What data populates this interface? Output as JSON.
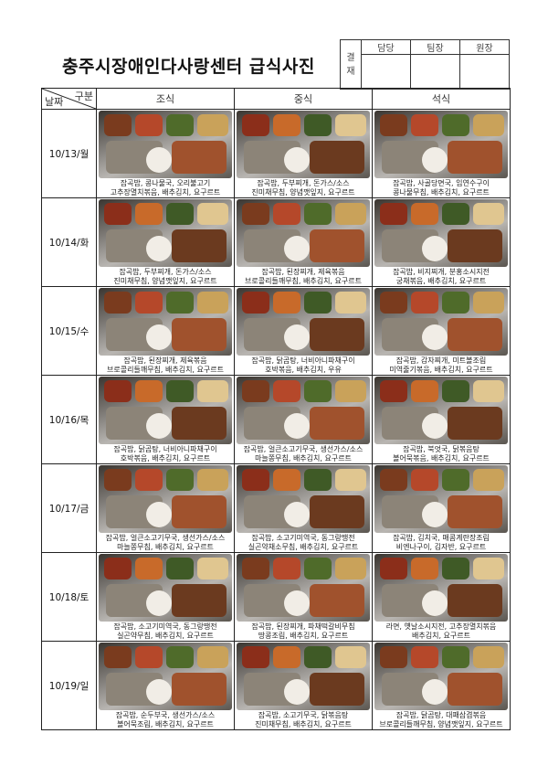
{
  "title": "충주시장애인다사랑센터 급식사진",
  "approval": {
    "label": "결\n재",
    "columns": [
      "담당",
      "팀장",
      "원장"
    ]
  },
  "table": {
    "corner_top": "구분",
    "corner_bottom": "날짜",
    "columns": [
      "조식",
      "중식",
      "석식"
    ],
    "rows": [
      {
        "date": "10/13/월",
        "meals": [
          [
            "잡곡밥, 콩나물국, 오리불고기",
            "고추장멸치볶음, 배추김치, 요구르트"
          ],
          [
            "잡곡밥, 두부찌개, 돈가스/소스",
            "진미채무침, 양념깻잎지, 요구르트"
          ],
          [
            "잡곡밥, 사골당면국, 임연수구이",
            "콩나물무침, 배추김치, 요구르트"
          ]
        ]
      },
      {
        "date": "10/14/화",
        "meals": [
          [
            "잡곡밥, 두부찌개, 돈가스/소스",
            "진미채무침, 양념깻잎지, 요구르트"
          ],
          [
            "잡곡밥, 된장찌개, 제육볶음",
            "브로콜리들깨무침, 배추김치, 요구르트"
          ],
          [
            "잡곡밥, 비지찌개, 분홍소시지전",
            "궁채볶음, 배추김치, 요구르트"
          ]
        ]
      },
      {
        "date": "10/15/수",
        "meals": [
          [
            "잡곡밥, 된장찌개, 제육볶음",
            "브로콜리들깨무침, 배추김치, 요구르트"
          ],
          [
            "잡곡밥, 닭곰탕, 너비아니파채구이",
            "호박볶음, 배추김치, 우유"
          ],
          [
            "잡곡밥, 감자찌개, 미트볼조림",
            "미역줄기볶음, 배추김치, 요구르트"
          ]
        ]
      },
      {
        "date": "10/16/목",
        "meals": [
          [
            "잡곡밥, 닭곰탕, 너비아니파채구이",
            "호박볶음, 배추김치, 요구르트"
          ],
          [
            "잡곡밥, 얼큰소고기무국, 생선가스/소스",
            "마늘쫑무침, 배추김치, 요구르트"
          ],
          [
            "잡곡밥, 북엇국, 닭볶음탕",
            "볼어묵볶음, 배추김치, 요구르트"
          ]
        ]
      },
      {
        "date": "10/17/금",
        "meals": [
          [
            "잡곡밥, 얼큰소고기무국, 생선가스/소스",
            "마늘쫑무침, 배추김치, 요구르트"
          ],
          [
            "잡곡밥, 소고기미역국, 동그랑땡전",
            "실곤약채소무침, 배추김치, 요구르트"
          ],
          [
            "잡곡밥, 김치국, 매콤계란장조림",
            "비엔나구이, 김자반, 요구르트"
          ]
        ]
      },
      {
        "date": "10/18/토",
        "meals": [
          [
            "잡곡밥, 소고기미역국, 동그랑땡전",
            "실곤약무침, 배추김치, 요구르트"
          ],
          [
            "잡곡밥, 된장찌개, 파채떡갈비무침",
            "땅콩조림, 배추김치, 요구르트"
          ],
          [
            "라면, 옛날소시지전, 고추장멸치볶음",
            "배추김치, 요구르트"
          ]
        ]
      },
      {
        "date": "10/19/일",
        "meals": [
          [
            "잡곡밥, 순두부국, 생선가스/소스",
            "볼어묵조림, 배추김치, 요구르트"
          ],
          [
            "잡곡밥, 소고기무국, 닭볶음탕",
            "진미채무침, 배추김치, 요구르트"
          ],
          [
            "잡곡밥, 닭곰탕, 대패삼겹볶음",
            "브로콜리들깨무침, 양념깻잎지, 요구르트"
          ]
        ]
      }
    ]
  }
}
